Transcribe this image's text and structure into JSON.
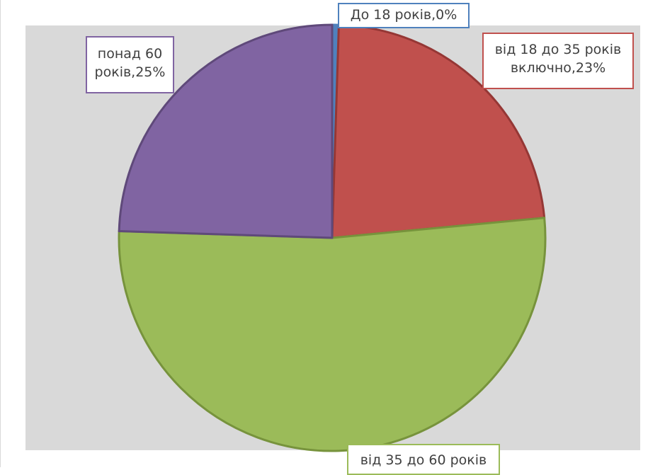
{
  "chart_data": {
    "type": "pie",
    "title": "",
    "slices": [
      {
        "label": "До 18 років",
        "value": 0.5,
        "label_text": "До 18 років,0%",
        "color": "#4f81bd",
        "border_color": "#4f81bd"
      },
      {
        "label": "від 18 до 35 років включно",
        "value": 23,
        "label_text": "від 18 до 35 років\nвключно,23%",
        "color": "#c0504d",
        "border_color": "#953735"
      },
      {
        "label": "від 35 до 60 років",
        "value": 52,
        "label_text": "від 35 до 60 років",
        "color": "#9bbb59",
        "border_color": "#77933c"
      },
      {
        "label": "понад 60 років",
        "value": 24.5,
        "label_text": "понад 60\nроків,25%",
        "color": "#8064a2",
        "border_color": "#5f497a"
      }
    ],
    "start_angle_deg": 0,
    "direction": "clockwise",
    "legend": "none",
    "background_color": "#d9d9d9"
  }
}
